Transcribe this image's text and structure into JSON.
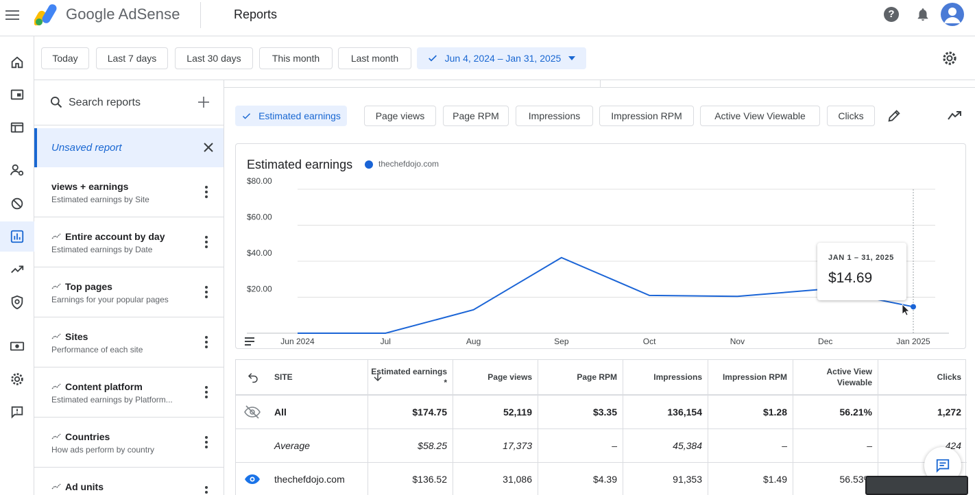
{
  "header": {
    "brand": "Google AdSense",
    "page_title": "Reports"
  },
  "date_ranges": [
    "Today",
    "Last 7 days",
    "Last 30 days",
    "This month",
    "Last month"
  ],
  "selected_range": "Jun 4, 2024 – Jan 31, 2025",
  "sidebar": {
    "search_placeholder": "Search reports",
    "unsaved_label": "Unsaved report",
    "reports": [
      {
        "title": "views + earnings",
        "subtitle": "Estimated earnings by Site",
        "spark": false
      },
      {
        "title": "Entire account by day",
        "subtitle": "Estimated earnings by Date",
        "spark": true
      },
      {
        "title": "Top pages",
        "subtitle": "Earnings for your popular pages",
        "spark": true
      },
      {
        "title": "Sites",
        "subtitle": "Performance of each site",
        "spark": true
      },
      {
        "title": "Content platform",
        "subtitle": "Estimated earnings by Platform...",
        "spark": true
      },
      {
        "title": "Countries",
        "subtitle": "How ads perform by country",
        "spark": true
      },
      {
        "title": "Ad units",
        "subtitle": "",
        "spark": true
      }
    ]
  },
  "metrics": [
    "Estimated earnings",
    "Page views",
    "Page RPM",
    "Impressions",
    "Impression RPM",
    "Active View Viewable",
    "Clicks"
  ],
  "selected_metric": "Estimated earnings",
  "chart_data": {
    "type": "line",
    "title": "Estimated earnings",
    "series": [
      {
        "name": "thechefdojo.com",
        "color": "#1a64d6",
        "values": [
          0.0,
          0.0,
          13.0,
          42.0,
          21.0,
          20.5,
          24.5,
          14.69
        ]
      }
    ],
    "x": [
      "Jun 2024",
      "Jul",
      "Aug",
      "Sep",
      "Oct",
      "Nov",
      "Dec",
      "Jan 2025"
    ],
    "yticks": [
      "$20.00",
      "$40.00",
      "$60.00",
      "$80.00"
    ],
    "ylim": [
      0,
      80
    ],
    "grid": true,
    "tooltip": {
      "label": "JAN 1 – 31, 2025",
      "value": "$14.69"
    }
  },
  "table": {
    "headers": [
      "SITE",
      "Estimated earnings *",
      "Page views",
      "Page RPM",
      "Impressions",
      "Impression RPM",
      "Active View Viewable",
      "Clicks"
    ],
    "rows": [
      {
        "site": "All",
        "values": [
          "$174.75",
          "52,119",
          "$3.35",
          "136,154",
          "$1.28",
          "56.21%",
          "1,272"
        ]
      },
      {
        "site": "Average",
        "values": [
          "$58.25",
          "17,373",
          "–",
          "45,384",
          "–",
          "–",
          "424"
        ]
      },
      {
        "site": "thechefdojo.com",
        "values": [
          "$136.52",
          "31,086",
          "$4.39",
          "91,353",
          "$1.49",
          "56.53%",
          ""
        ]
      }
    ]
  }
}
